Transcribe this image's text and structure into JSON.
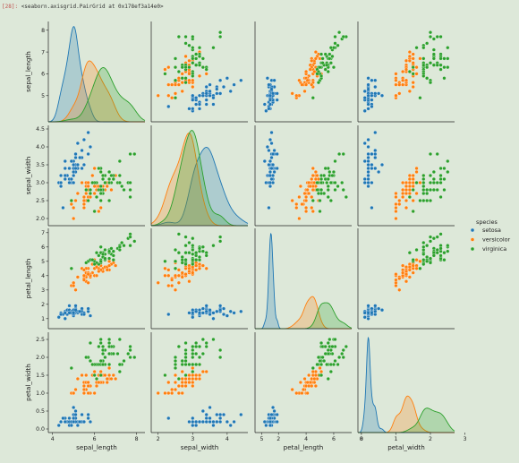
{
  "cell": {
    "prompt": "[28]:",
    "output_repr": "<seaborn.axisgrid.PairGrid at 0x178ef3a14e0>"
  },
  "chart_data": {
    "type": "scatter",
    "kind": "pairplot",
    "variables": [
      "sepal_length",
      "sepal_width",
      "petal_length",
      "petal_width"
    ],
    "axis_ranges": {
      "sepal_length": [
        3.8,
        8.4
      ],
      "sepal_width": [
        1.8,
        4.6
      ],
      "petal_length": [
        0.3,
        7.3
      ],
      "petal_width": [
        -0.1,
        2.7
      ]
    },
    "ticks": {
      "sepal_length": [
        4,
        6,
        8
      ],
      "sepal_width": [
        2,
        3,
        4,
        5
      ],
      "petal_length": [
        2,
        4,
        6,
        8
      ],
      "petal_width": [
        0,
        1,
        2,
        3
      ]
    },
    "y_ticks": {
      "sepal_length": [
        "5",
        "6",
        "7",
        "8"
      ],
      "sepal_width": [
        "2.0",
        "2.5",
        "3.0",
        "3.5",
        "4.0",
        "4.5"
      ],
      "petal_length": [
        "1",
        "2",
        "3",
        "4",
        "5",
        "6",
        "7"
      ],
      "petal_width": [
        "0.0",
        "0.5",
        "1.0",
        "1.5",
        "2.0",
        "2.5"
      ]
    },
    "diagonal": "kde",
    "grid": false,
    "legend": {
      "title": "species",
      "placement": "right",
      "entries": [
        "setosa",
        "versicolor",
        "virginica"
      ]
    },
    "colors": {
      "setosa": "#1f77b4",
      "versicolor": "#ff7f0e",
      "virginica": "#2ca02c"
    },
    "series": [
      {
        "name": "setosa",
        "points": [
          [
            5.1,
            3.5,
            1.4,
            0.2
          ],
          [
            4.9,
            3.0,
            1.4,
            0.2
          ],
          [
            4.7,
            3.2,
            1.3,
            0.2
          ],
          [
            4.6,
            3.1,
            1.5,
            0.2
          ],
          [
            5.0,
            3.6,
            1.4,
            0.2
          ],
          [
            5.4,
            3.9,
            1.7,
            0.4
          ],
          [
            4.6,
            3.4,
            1.4,
            0.3
          ],
          [
            5.0,
            3.4,
            1.5,
            0.2
          ],
          [
            4.4,
            2.9,
            1.4,
            0.2
          ],
          [
            4.9,
            3.1,
            1.5,
            0.1
          ],
          [
            5.4,
            3.7,
            1.5,
            0.2
          ],
          [
            4.8,
            3.4,
            1.6,
            0.2
          ],
          [
            4.8,
            3.0,
            1.4,
            0.1
          ],
          [
            4.3,
            3.0,
            1.1,
            0.1
          ],
          [
            5.8,
            4.0,
            1.2,
            0.2
          ],
          [
            5.7,
            4.4,
            1.5,
            0.4
          ],
          [
            5.4,
            3.9,
            1.3,
            0.4
          ],
          [
            5.1,
            3.5,
            1.4,
            0.3
          ],
          [
            5.7,
            3.8,
            1.7,
            0.3
          ],
          [
            5.1,
            3.8,
            1.5,
            0.3
          ],
          [
            5.4,
            3.4,
            1.7,
            0.2
          ],
          [
            5.1,
            3.7,
            1.5,
            0.4
          ],
          [
            4.6,
            3.6,
            1.0,
            0.2
          ],
          [
            5.1,
            3.3,
            1.7,
            0.5
          ],
          [
            4.8,
            3.4,
            1.9,
            0.2
          ],
          [
            5.0,
            3.0,
            1.6,
            0.2
          ],
          [
            5.0,
            3.4,
            1.6,
            0.4
          ],
          [
            5.2,
            3.5,
            1.5,
            0.2
          ],
          [
            5.2,
            3.4,
            1.4,
            0.2
          ],
          [
            4.7,
            3.2,
            1.6,
            0.2
          ],
          [
            4.8,
            3.1,
            1.6,
            0.2
          ],
          [
            5.4,
            3.4,
            1.5,
            0.4
          ],
          [
            5.2,
            4.1,
            1.5,
            0.1
          ],
          [
            5.5,
            4.2,
            1.4,
            0.2
          ],
          [
            4.9,
            3.1,
            1.5,
            0.2
          ],
          [
            5.0,
            3.2,
            1.2,
            0.2
          ],
          [
            5.5,
            3.5,
            1.3,
            0.2
          ],
          [
            4.9,
            3.6,
            1.4,
            0.1
          ],
          [
            4.4,
            3.0,
            1.3,
            0.2
          ],
          [
            5.1,
            3.4,
            1.5,
            0.2
          ],
          [
            5.0,
            3.5,
            1.3,
            0.3
          ],
          [
            4.5,
            2.3,
            1.3,
            0.3
          ],
          [
            4.4,
            3.2,
            1.3,
            0.2
          ],
          [
            5.0,
            3.5,
            1.6,
            0.6
          ],
          [
            5.1,
            3.8,
            1.9,
            0.4
          ],
          [
            4.8,
            3.0,
            1.4,
            0.3
          ],
          [
            5.1,
            3.8,
            1.6,
            0.2
          ],
          [
            4.6,
            3.2,
            1.4,
            0.2
          ],
          [
            5.3,
            3.7,
            1.5,
            0.2
          ],
          [
            5.0,
            3.3,
            1.4,
            0.2
          ]
        ]
      },
      {
        "name": "versicolor",
        "points": [
          [
            7.0,
            3.2,
            4.7,
            1.4
          ],
          [
            6.4,
            3.2,
            4.5,
            1.5
          ],
          [
            6.9,
            3.1,
            4.9,
            1.5
          ],
          [
            5.5,
            2.3,
            4.0,
            1.3
          ],
          [
            6.5,
            2.8,
            4.6,
            1.5
          ],
          [
            5.7,
            2.8,
            4.5,
            1.3
          ],
          [
            6.3,
            3.3,
            4.7,
            1.6
          ],
          [
            4.9,
            2.4,
            3.3,
            1.0
          ],
          [
            6.6,
            2.9,
            4.6,
            1.3
          ],
          [
            5.2,
            2.7,
            3.9,
            1.4
          ],
          [
            5.0,
            2.0,
            3.5,
            1.0
          ],
          [
            5.9,
            3.0,
            4.2,
            1.5
          ],
          [
            6.0,
            2.2,
            4.0,
            1.0
          ],
          [
            6.1,
            2.9,
            4.7,
            1.4
          ],
          [
            5.6,
            2.9,
            3.6,
            1.3
          ],
          [
            6.7,
            3.1,
            4.4,
            1.4
          ],
          [
            5.6,
            3.0,
            4.5,
            1.5
          ],
          [
            5.8,
            2.7,
            4.1,
            1.0
          ],
          [
            6.2,
            2.2,
            4.5,
            1.5
          ],
          [
            5.6,
            2.5,
            3.9,
            1.1
          ],
          [
            5.9,
            3.2,
            4.8,
            1.8
          ],
          [
            6.1,
            2.8,
            4.0,
            1.3
          ],
          [
            6.3,
            2.5,
            4.9,
            1.5
          ],
          [
            6.1,
            2.8,
            4.7,
            1.2
          ],
          [
            6.4,
            2.9,
            4.3,
            1.3
          ],
          [
            6.6,
            3.0,
            4.4,
            1.4
          ],
          [
            6.8,
            2.8,
            4.8,
            1.4
          ],
          [
            6.7,
            3.0,
            5.0,
            1.7
          ],
          [
            6.0,
            2.9,
            4.5,
            1.5
          ],
          [
            5.7,
            2.6,
            3.5,
            1.0
          ],
          [
            5.5,
            2.4,
            3.8,
            1.1
          ],
          [
            5.5,
            2.4,
            3.7,
            1.0
          ],
          [
            5.8,
            2.7,
            3.9,
            1.2
          ],
          [
            6.0,
            2.7,
            5.1,
            1.6
          ],
          [
            5.4,
            3.0,
            4.5,
            1.5
          ],
          [
            6.0,
            3.4,
            4.5,
            1.6
          ],
          [
            6.7,
            3.1,
            4.7,
            1.5
          ],
          [
            6.3,
            2.3,
            4.4,
            1.3
          ],
          [
            5.6,
            3.0,
            4.1,
            1.3
          ],
          [
            5.5,
            2.5,
            4.0,
            1.3
          ],
          [
            5.5,
            2.6,
            4.4,
            1.2
          ],
          [
            6.1,
            3.0,
            4.6,
            1.4
          ],
          [
            5.8,
            2.6,
            4.0,
            1.2
          ],
          [
            5.0,
            2.3,
            3.3,
            1.0
          ],
          [
            5.6,
            2.7,
            4.2,
            1.3
          ],
          [
            5.7,
            3.0,
            4.2,
            1.2
          ],
          [
            5.7,
            2.9,
            4.2,
            1.3
          ],
          [
            6.2,
            2.9,
            4.3,
            1.3
          ],
          [
            5.1,
            2.5,
            3.0,
            1.1
          ],
          [
            5.7,
            2.8,
            4.1,
            1.3
          ]
        ]
      },
      {
        "name": "virginica",
        "points": [
          [
            6.3,
            3.3,
            6.0,
            2.5
          ],
          [
            5.8,
            2.7,
            5.1,
            1.9
          ],
          [
            7.1,
            3.0,
            5.9,
            2.1
          ],
          [
            6.3,
            2.9,
            5.6,
            1.8
          ],
          [
            6.5,
            3.0,
            5.8,
            2.2
          ],
          [
            7.6,
            3.0,
            6.6,
            2.1
          ],
          [
            4.9,
            2.5,
            4.5,
            1.7
          ],
          [
            7.3,
            2.9,
            6.3,
            1.8
          ],
          [
            6.7,
            2.5,
            5.8,
            1.8
          ],
          [
            7.2,
            3.6,
            6.1,
            2.5
          ],
          [
            6.5,
            3.2,
            5.1,
            2.0
          ],
          [
            6.4,
            2.7,
            5.3,
            1.9
          ],
          [
            6.8,
            3.0,
            5.5,
            2.1
          ],
          [
            5.7,
            2.5,
            5.0,
            2.0
          ],
          [
            5.8,
            2.8,
            5.1,
            2.4
          ],
          [
            6.4,
            3.2,
            5.3,
            2.3
          ],
          [
            6.5,
            3.0,
            5.5,
            1.8
          ],
          [
            7.7,
            3.8,
            6.7,
            2.2
          ],
          [
            7.7,
            2.6,
            6.9,
            2.3
          ],
          [
            6.0,
            2.2,
            5.0,
            1.5
          ],
          [
            6.9,
            3.2,
            5.7,
            2.3
          ],
          [
            5.6,
            2.8,
            4.9,
            2.0
          ],
          [
            7.7,
            2.8,
            6.7,
            2.0
          ],
          [
            6.3,
            2.7,
            4.9,
            1.8
          ],
          [
            6.7,
            3.3,
            5.7,
            2.1
          ],
          [
            7.2,
            3.2,
            6.0,
            1.8
          ],
          [
            6.2,
            2.8,
            4.8,
            1.8
          ],
          [
            6.1,
            3.0,
            4.9,
            1.8
          ],
          [
            6.4,
            2.8,
            5.6,
            2.1
          ],
          [
            7.2,
            3.0,
            5.8,
            1.6
          ],
          [
            7.4,
            2.8,
            6.1,
            1.9
          ],
          [
            7.9,
            3.8,
            6.4,
            2.0
          ],
          [
            6.4,
            2.8,
            5.6,
            2.2
          ],
          [
            6.3,
            2.8,
            5.1,
            1.5
          ],
          [
            6.1,
            2.6,
            5.6,
            1.4
          ],
          [
            7.7,
            3.0,
            6.1,
            2.3
          ],
          [
            6.3,
            3.4,
            5.6,
            2.4
          ],
          [
            6.4,
            3.1,
            5.5,
            1.8
          ],
          [
            6.0,
            3.0,
            4.8,
            1.8
          ],
          [
            6.9,
            3.1,
            5.4,
            2.1
          ],
          [
            6.7,
            3.1,
            5.6,
            2.4
          ],
          [
            6.9,
            3.1,
            5.1,
            2.3
          ],
          [
            5.8,
            2.7,
            5.1,
            1.9
          ],
          [
            6.8,
            3.2,
            5.9,
            2.3
          ],
          [
            6.7,
            3.3,
            5.7,
            2.5
          ],
          [
            6.7,
            3.0,
            5.2,
            2.3
          ],
          [
            6.3,
            2.5,
            5.0,
            1.9
          ],
          [
            6.5,
            3.0,
            5.2,
            2.0
          ],
          [
            6.2,
            3.4,
            5.4,
            2.3
          ],
          [
            5.9,
            3.0,
            5.1,
            1.8
          ]
        ]
      }
    ]
  }
}
